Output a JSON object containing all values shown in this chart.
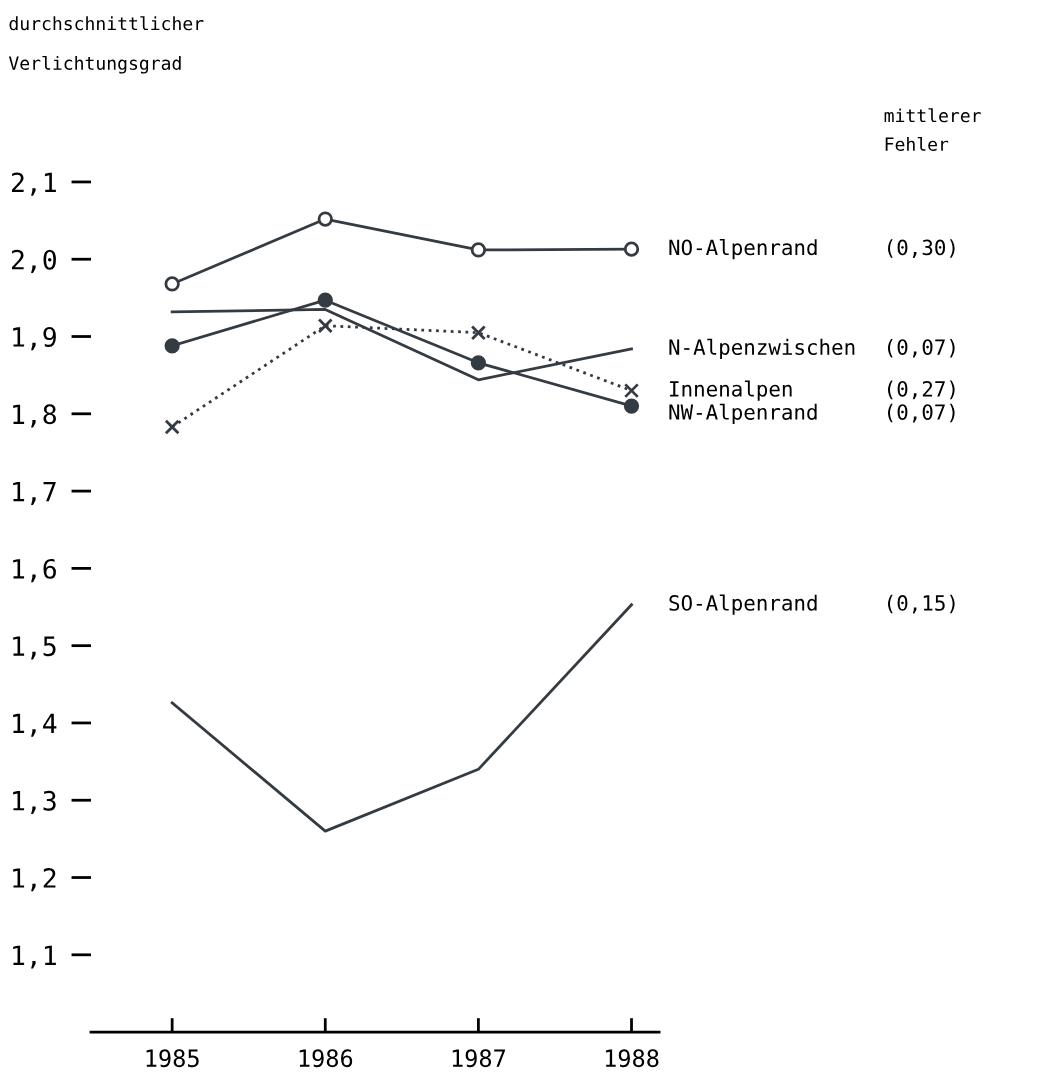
{
  "chart_data": {
    "type": "line",
    "ylabel": "durchschnittlicher\nVerlichtungsgrad",
    "categories": [
      "1985",
      "1986",
      "1987",
      "1988"
    ],
    "ylim": [
      1.0,
      2.1
    ],
    "yticks": [
      {
        "value": 1.1,
        "label": "1,1"
      },
      {
        "value": 1.2,
        "label": "1,2"
      },
      {
        "value": 1.3,
        "label": "1,3"
      },
      {
        "value": 1.4,
        "label": "1,4"
      },
      {
        "value": 1.5,
        "label": "1,5"
      },
      {
        "value": 1.6,
        "label": "1,6"
      },
      {
        "value": 1.7,
        "label": "1,7"
      },
      {
        "value": 1.8,
        "label": "1,8"
      },
      {
        "value": 1.9,
        "label": "1,9"
      },
      {
        "value": 2.0,
        "label": "2,0"
      },
      {
        "value": 2.1,
        "label": "2,1"
      }
    ],
    "grid": false,
    "legend": false,
    "series": [
      {
        "name": "NO-Alpenrand",
        "color": "#353b42",
        "marker": "circle",
        "line_style": "solid",
        "values": [
          1.968,
          2.052,
          2.012,
          2.013
        ]
      },
      {
        "name": "N-Alpenzwischen",
        "color": "#353b42",
        "marker": "none",
        "line_style": "solid",
        "values": [
          1.932,
          1.935,
          1.844,
          1.884
        ]
      },
      {
        "name": "Innenalpen",
        "color": "#353b42",
        "marker": "cross",
        "line_style": "dotted",
        "values": [
          1.783,
          1.914,
          1.905,
          1.83
        ]
      },
      {
        "name": "NW-Alpenrand",
        "color": "#353b42",
        "marker": "dot",
        "line_style": "solid",
        "values": [
          1.888,
          1.947,
          1.866,
          1.81
        ]
      },
      {
        "name": "SO-Alpenrand",
        "color": "#353b42",
        "marker": "none",
        "line_style": "solid",
        "values": [
          1.426,
          1.26,
          1.34,
          1.553
        ]
      }
    ],
    "annotations": [
      "mittlerer\nFehler",
      "(0,30)",
      "(0,07)",
      "(0,27)",
      "(0,07)",
      "(0,15)"
    ]
  }
}
